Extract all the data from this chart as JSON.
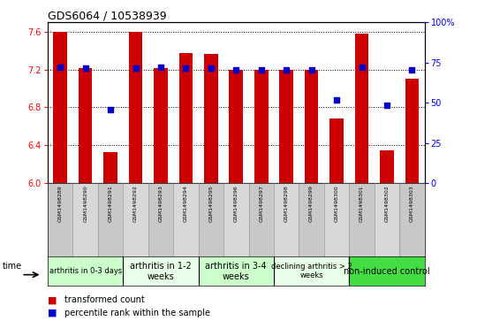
{
  "title": "GDS6064 / 10538939",
  "samples": [
    "GSM1498289",
    "GSM1498290",
    "GSM1498291",
    "GSM1498292",
    "GSM1498293",
    "GSM1498294",
    "GSM1498295",
    "GSM1498296",
    "GSM1498297",
    "GSM1498298",
    "GSM1498299",
    "GSM1498300",
    "GSM1498301",
    "GSM1498302",
    "GSM1498303"
  ],
  "bar_values": [
    7.6,
    7.22,
    6.33,
    7.6,
    7.22,
    7.38,
    7.37,
    7.2,
    7.2,
    7.2,
    7.2,
    6.68,
    7.58,
    6.35,
    7.1
  ],
  "dot_values": [
    7.23,
    7.22,
    6.78,
    7.22,
    7.23,
    7.22,
    7.22,
    7.2,
    7.2,
    7.2,
    7.2,
    6.88,
    7.23,
    6.82,
    7.2
  ],
  "ylim": [
    6.0,
    7.7
  ],
  "y2lim": [
    0,
    100
  ],
  "yticks": [
    6.0,
    6.4,
    6.8,
    7.2,
    7.6
  ],
  "y2ticks": [
    0,
    25,
    50,
    75,
    100
  ],
  "bar_color": "#CC0000",
  "dot_color": "#0000CC",
  "groups": [
    {
      "label": "arthritis in 0-3 days",
      "start": 0,
      "end": 3,
      "color": "#ccffcc",
      "fontsize": 6
    },
    {
      "label": "arthritis in 1-2\nweeks",
      "start": 3,
      "end": 6,
      "color": "#e8ffe8",
      "fontsize": 7
    },
    {
      "label": "arthritis in 3-4\nweeks",
      "start": 6,
      "end": 9,
      "color": "#ccffcc",
      "fontsize": 7
    },
    {
      "label": "declining arthritis > 2\nweeks",
      "start": 9,
      "end": 12,
      "color": "#e8ffe8",
      "fontsize": 6
    },
    {
      "label": "non-induced control",
      "start": 12,
      "end": 15,
      "color": "#44dd44",
      "fontsize": 7
    }
  ],
  "legend_transformed": "transformed count",
  "legend_percentile": "percentile rank within the sample",
  "background_color": "#ffffff",
  "base_value": 6.0,
  "label_bg_even": "#c8c8c8",
  "label_bg_odd": "#d8d8d8"
}
